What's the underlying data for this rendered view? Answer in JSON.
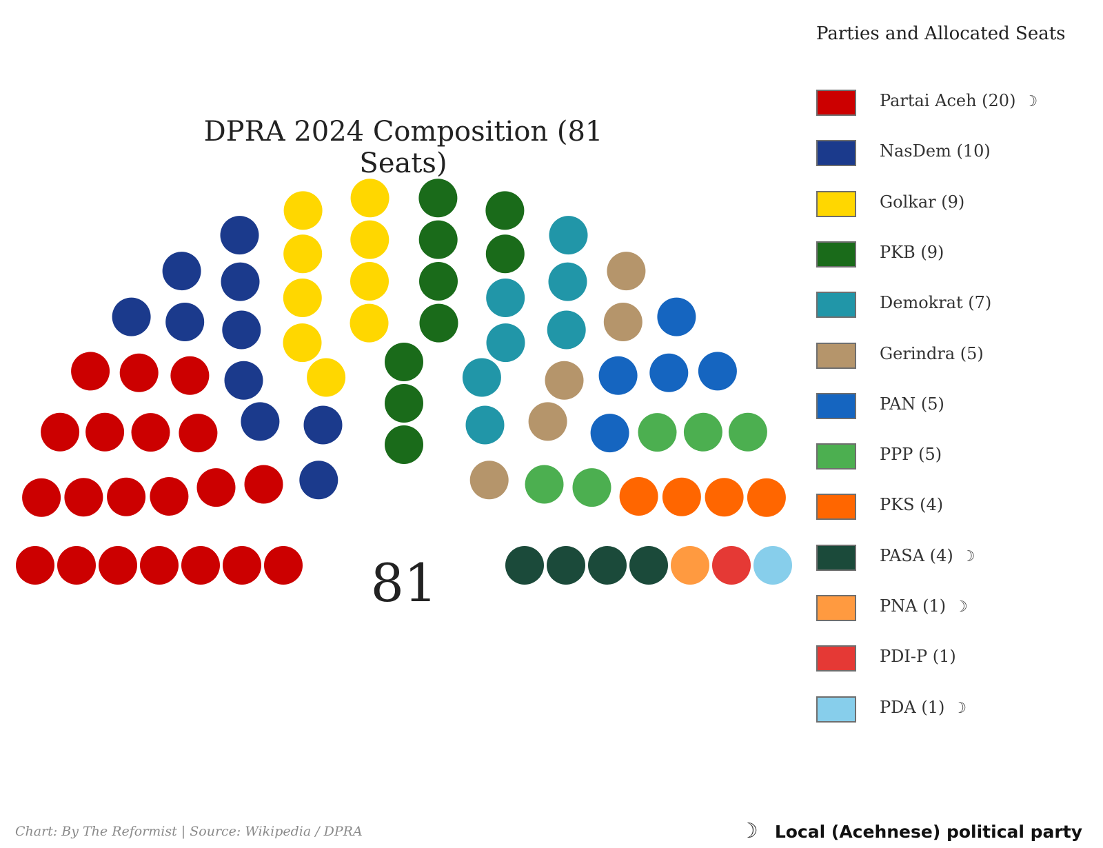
{
  "chart_data": {
    "type": "parliament",
    "title": "DPRA 2024 Composition (81 Seats)",
    "total_label": "81",
    "total_seats": 81,
    "legend_title": "Parties and Allocated Seats",
    "series": [
      {
        "name": "Partai Aceh",
        "seats": 20,
        "color": "#cc0000",
        "local": true,
        "label": "Partai Aceh (20)"
      },
      {
        "name": "NasDem",
        "seats": 10,
        "color": "#1b3a8c",
        "local": false,
        "label": "NasDem (10)"
      },
      {
        "name": "Golkar",
        "seats": 9,
        "color": "#ffd700",
        "local": false,
        "label": "Golkar (9)"
      },
      {
        "name": "PKB",
        "seats": 9,
        "color": "#1a6b1a",
        "local": false,
        "label": "PKB (9)"
      },
      {
        "name": "Demokrat",
        "seats": 7,
        "color": "#2196a8",
        "local": false,
        "label": "Demokrat (7)"
      },
      {
        "name": "Gerindra",
        "seats": 5,
        "color": "#b5956b",
        "local": false,
        "label": "Gerindra (5)"
      },
      {
        "name": "PAN",
        "seats": 5,
        "color": "#1565c0",
        "local": false,
        "label": "PAN (5)"
      },
      {
        "name": "PPP",
        "seats": 5,
        "color": "#4caf50",
        "local": false,
        "label": "PPP (5)"
      },
      {
        "name": "PKS",
        "seats": 4,
        "color": "#ff6600",
        "local": false,
        "label": "PKS (4)"
      },
      {
        "name": "PASA",
        "seats": 4,
        "color": "#1b4a3a",
        "local": true,
        "label": "PASA (4)"
      },
      {
        "name": "PNA",
        "seats": 1,
        "color": "#ff9a40",
        "local": true,
        "label": "PNA (1)"
      },
      {
        "name": "PDI-P",
        "seats": 1,
        "color": "#e53935",
        "local": false,
        "label": "PDI-P (1)"
      },
      {
        "name": "PDA",
        "seats": 1,
        "color": "#87ceeb",
        "local": true,
        "label": "PDA (1)"
      }
    ]
  },
  "local_marker": "☽",
  "footer": {
    "credit": "Chart: By The Reformist  |  Source: Wikipedia / DPRA",
    "note_symbol": "☽",
    "note_text": "Local (Acehnese) political party"
  }
}
